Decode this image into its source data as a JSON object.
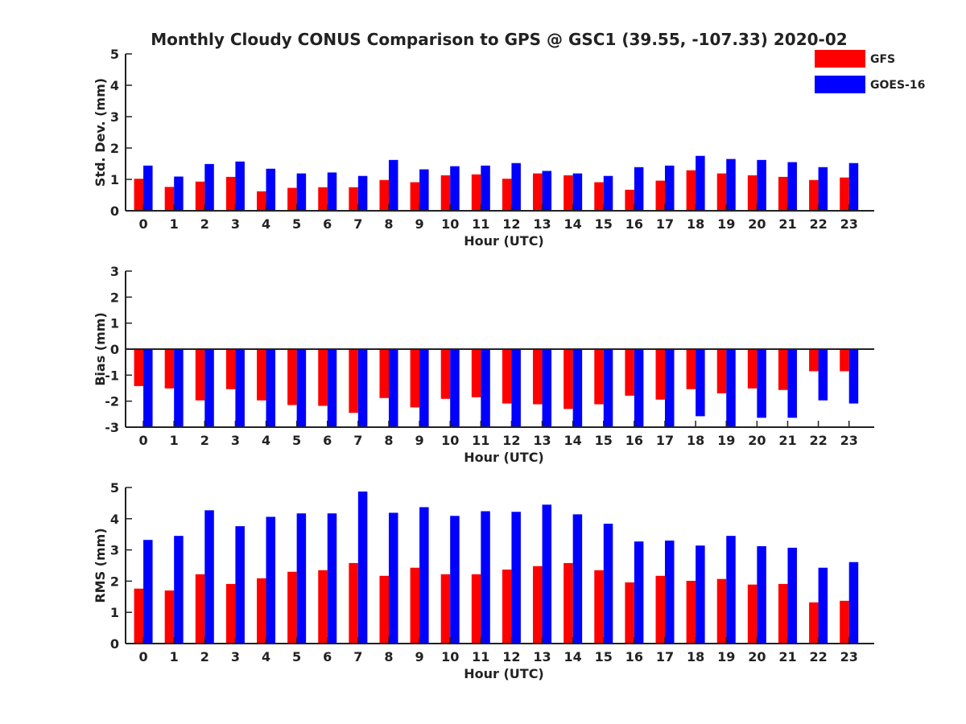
{
  "figure_title": "Monthly Cloudy CONUS Comparison to GPS @ GSC1 (39.55, -107.33) 2020-02",
  "legend": [
    {
      "name": "GFS",
      "color": "#ff0000"
    },
    {
      "name": "GOES-16",
      "color": "#0000ff"
    }
  ],
  "chart_data": [
    {
      "type": "bar",
      "xlabel": "Hour (UTC)",
      "ylabel": "Std. Dev. (mm)",
      "ylim": [
        0,
        5
      ],
      "yticks": [
        0,
        1,
        2,
        3,
        4,
        5
      ],
      "categories": [
        "0",
        "1",
        "2",
        "3",
        "4",
        "5",
        "6",
        "7",
        "8",
        "9",
        "10",
        "11",
        "12",
        "13",
        "14",
        "15",
        "16",
        "17",
        "18",
        "19",
        "20",
        "21",
        "22",
        "23"
      ],
      "series": [
        {
          "name": "GFS",
          "color": "#ff0000",
          "values": [
            1.02,
            0.76,
            0.93,
            1.08,
            0.62,
            0.73,
            0.75,
            0.75,
            0.98,
            0.91,
            1.13,
            1.16,
            1.02,
            1.19,
            1.13,
            0.91,
            0.67,
            0.96,
            1.29,
            1.19,
            1.13,
            1.08,
            0.98,
            1.06
          ]
        },
        {
          "name": "GOES-16",
          "color": "#0000ff",
          "values": [
            1.44,
            1.09,
            1.49,
            1.57,
            1.34,
            1.19,
            1.22,
            1.11,
            1.62,
            1.32,
            1.42,
            1.44,
            1.52,
            1.27,
            1.19,
            1.11,
            1.39,
            1.44,
            1.75,
            1.65,
            1.62,
            1.55,
            1.39,
            1.52
          ]
        }
      ]
    },
    {
      "type": "bar",
      "xlabel": "Hour (UTC)",
      "ylabel": "Bias (mm)",
      "ylim": [
        -3,
        3
      ],
      "yticks": [
        -3,
        -2,
        -1,
        0,
        1,
        2,
        3
      ],
      "categories": [
        "0",
        "1",
        "2",
        "3",
        "4",
        "5",
        "6",
        "7",
        "8",
        "9",
        "10",
        "11",
        "12",
        "13",
        "14",
        "15",
        "16",
        "17",
        "18",
        "19",
        "20",
        "21",
        "22",
        "23"
      ],
      "series": [
        {
          "name": "GFS",
          "color": "#ff0000",
          "values": [
            -1.42,
            -1.51,
            -1.97,
            -1.54,
            -1.97,
            -2.15,
            -2.18,
            -2.45,
            -1.88,
            -2.24,
            -1.91,
            -1.85,
            -2.09,
            -2.12,
            -2.3,
            -2.12,
            -1.79,
            -1.94,
            -1.54,
            -1.7,
            -1.51,
            -1.57,
            -0.85,
            -0.85
          ]
        },
        {
          "name": "GOES-16",
          "color": "#0000ff",
          "values": [
            -3.0,
            -3.0,
            -3.0,
            -3.0,
            -3.0,
            -3.0,
            -3.0,
            -3.0,
            -3.0,
            -3.0,
            -3.0,
            -3.0,
            -3.0,
            -3.0,
            -3.0,
            -3.0,
            -2.97,
            -2.97,
            -2.58,
            -3.0,
            -2.64,
            -2.64,
            -1.97,
            -2.09
          ]
        }
      ]
    },
    {
      "type": "bar",
      "xlabel": "Hour (UTC)",
      "ylabel": "RMS (mm)",
      "ylim": [
        0,
        5
      ],
      "yticks": [
        0,
        1,
        2,
        3,
        4,
        5
      ],
      "categories": [
        "0",
        "1",
        "2",
        "3",
        "4",
        "5",
        "6",
        "7",
        "8",
        "9",
        "10",
        "11",
        "12",
        "13",
        "14",
        "15",
        "16",
        "17",
        "18",
        "19",
        "20",
        "21",
        "22",
        "23"
      ],
      "series": [
        {
          "name": "GFS",
          "color": "#ff0000",
          "values": [
            1.76,
            1.7,
            2.22,
            1.91,
            2.09,
            2.3,
            2.35,
            2.58,
            2.17,
            2.43,
            2.22,
            2.22,
            2.37,
            2.48,
            2.58,
            2.35,
            1.96,
            2.17,
            2.01,
            2.07,
            1.89,
            1.91,
            1.32,
            1.37
          ]
        },
        {
          "name": "GOES-16",
          "color": "#0000ff",
          "values": [
            3.32,
            3.45,
            4.27,
            3.76,
            4.06,
            4.17,
            4.17,
            4.87,
            4.19,
            4.37,
            4.09,
            4.24,
            4.22,
            4.45,
            4.14,
            3.84,
            3.27,
            3.3,
            3.14,
            3.45,
            3.12,
            3.07,
            2.43,
            2.61
          ]
        }
      ]
    }
  ]
}
